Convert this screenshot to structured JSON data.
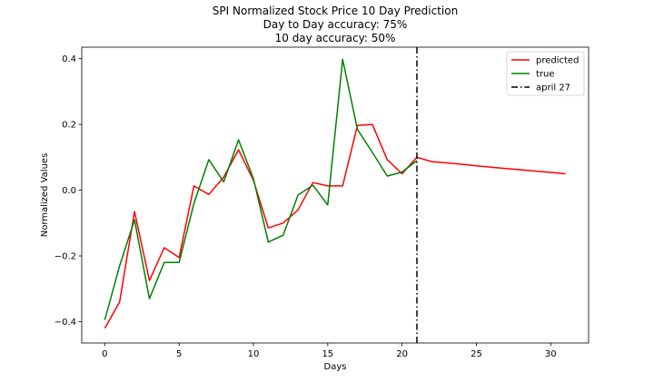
{
  "chart_data": {
    "type": "line",
    "title": [
      "SPI Normalized Stock Price 10 Day Prediction",
      "Day to Day accuracy: 75%",
      "10 day accuracy: 50%"
    ],
    "xlabel": "Days",
    "ylabel": "Normalized Values",
    "xlim": [
      -1.55,
      32.55
    ],
    "ylim": [
      -0.465,
      0.435
    ],
    "xticks": [
      0,
      5,
      10,
      15,
      20,
      25,
      30
    ],
    "xtick_labels": [
      "0",
      "5",
      "10",
      "15",
      "20",
      "25",
      "30"
    ],
    "yticks": [
      -0.4,
      -0.2,
      0.0,
      0.2,
      0.4
    ],
    "ytick_labels": [
      "−0.4",
      "−0.2",
      "0.0",
      "0.2",
      "0.4"
    ],
    "grid": false,
    "legend_position": "top-right",
    "series": [
      {
        "name": "predicted",
        "color": "#ff0000",
        "style": "solid",
        "x": [
          0,
          1,
          2,
          3,
          4,
          5,
          6,
          7,
          8,
          9,
          10,
          11,
          12,
          13,
          14,
          15,
          16,
          17,
          18,
          19,
          20,
          21,
          22,
          23,
          24,
          25,
          26,
          27,
          28,
          29,
          30,
          31
        ],
        "y": [
          -0.42,
          -0.34,
          -0.065,
          -0.275,
          -0.175,
          -0.205,
          0.013,
          -0.013,
          0.04,
          0.123,
          0.03,
          -0.115,
          -0.1,
          -0.06,
          0.023,
          0.013,
          0.013,
          0.197,
          0.2,
          0.093,
          0.05,
          0.1,
          0.087,
          0.083,
          0.079,
          0.074,
          0.07,
          0.066,
          0.062,
          0.058,
          0.054,
          0.05
        ]
      },
      {
        "name": "true",
        "color": "#008000",
        "style": "solid",
        "x": [
          0,
          1,
          2,
          3,
          4,
          5,
          6,
          7,
          8,
          9,
          10,
          11,
          12,
          13,
          14,
          15,
          16,
          17,
          18,
          19,
          20,
          21
        ],
        "y": [
          -0.395,
          -0.23,
          -0.09,
          -0.33,
          -0.22,
          -0.22,
          -0.04,
          0.093,
          0.025,
          0.153,
          0.035,
          -0.158,
          -0.137,
          -0.015,
          0.015,
          -0.045,
          0.398,
          0.185,
          0.115,
          0.043,
          0.055,
          0.09
        ]
      }
    ],
    "vlines": [
      {
        "name": "april 27",
        "x": 21,
        "color": "#000000",
        "style": "dashdot"
      }
    ]
  }
}
